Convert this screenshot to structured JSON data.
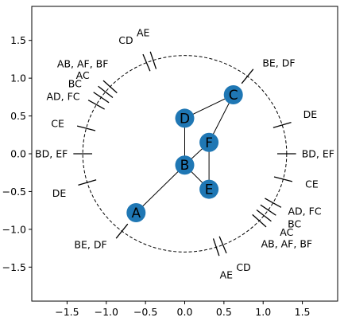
{
  "chart_data": {
    "type": "network",
    "xlim": [
      -1.95,
      1.95
    ],
    "ylim": [
      -1.95,
      1.95
    ],
    "xticks": [
      -1.5,
      -1.0,
      -0.5,
      0.0,
      0.5,
      1.0,
      1.5
    ],
    "yticks": [
      -1.5,
      -1.0,
      -0.5,
      0.0,
      0.5,
      1.0,
      1.5
    ],
    "xtick_labels": [
      "−1.5",
      "−1.0",
      "−0.5",
      "0.0",
      "0.5",
      "1.0",
      "1.5"
    ],
    "ytick_labels": [
      "−1.5",
      "−1.0",
      "−0.5",
      "0.0",
      "0.5",
      "1.0",
      "1.5"
    ],
    "circle": {
      "radius": 1.3,
      "style": "dashed"
    },
    "node_color": "#1f77b4",
    "nodes": [
      {
        "id": "A",
        "x": -0.62,
        "y": -0.78
      },
      {
        "id": "B",
        "x": 0.0,
        "y": -0.15
      },
      {
        "id": "C",
        "x": 0.62,
        "y": 0.78
      },
      {
        "id": "D",
        "x": 0.0,
        "y": 0.47
      },
      {
        "id": "E",
        "x": 0.31,
        "y": -0.47
      },
      {
        "id": "F",
        "x": 0.31,
        "y": 0.15
      }
    ],
    "edges": [
      [
        "A",
        "B"
      ],
      [
        "B",
        "D"
      ],
      [
        "B",
        "F"
      ],
      [
        "B",
        "E"
      ],
      [
        "F",
        "E"
      ],
      [
        "F",
        "C"
      ],
      [
        "D",
        "C"
      ]
    ],
    "annotations": [
      {
        "text": "AE",
        "x": -0.53,
        "y": 1.6
      },
      {
        "text": "CD",
        "x": -0.75,
        "y": 1.5
      },
      {
        "text": "AB, AF, BF",
        "x": -1.3,
        "y": 1.19
      },
      {
        "text": "AC",
        "x": -1.3,
        "y": 1.04
      },
      {
        "text": "BC",
        "x": -1.4,
        "y": 0.93
      },
      {
        "text": "AD, FC",
        "x": -1.55,
        "y": 0.76
      },
      {
        "text": "CE",
        "x": -1.62,
        "y": 0.4
      },
      {
        "text": "BD, EF",
        "x": -1.7,
        "y": 0.0
      },
      {
        "text": "DE",
        "x": -1.6,
        "y": -0.52
      },
      {
        "text": "BE, DF",
        "x": -1.2,
        "y": -1.2
      },
      {
        "text": "BE, DF",
        "x": 1.2,
        "y": 1.2
      },
      {
        "text": "DE",
        "x": 1.6,
        "y": 0.52
      },
      {
        "text": "BD, EF",
        "x": 1.7,
        "y": 0.0
      },
      {
        "text": "CE",
        "x": 1.62,
        "y": -0.4
      },
      {
        "text": "AD, FC",
        "x": 1.53,
        "y": -0.76
      },
      {
        "text": "BC",
        "x": 1.4,
        "y": -0.93
      },
      {
        "text": "AC",
        "x": 1.3,
        "y": -1.04
      },
      {
        "text": "AB, AF, BF",
        "x": 1.3,
        "y": -1.19
      },
      {
        "text": "CD",
        "x": 0.75,
        "y": -1.5
      },
      {
        "text": "AE",
        "x": 0.53,
        "y": -1.6
      }
    ],
    "markers": [
      {
        "angle": 112
      },
      {
        "angle": 108
      },
      {
        "angle": 137
      },
      {
        "angle": 141
      },
      {
        "angle": 145
      },
      {
        "angle": 150
      },
      {
        "angle": 165
      },
      {
        "angle": 180
      },
      {
        "angle": 197
      },
      {
        "angle": 232
      },
      {
        "angle": 52
      },
      {
        "angle": 17
      },
      {
        "angle": 0
      },
      {
        "angle": -15
      },
      {
        "angle": -30
      },
      {
        "angle": -35
      },
      {
        "angle": -39
      },
      {
        "angle": -43
      },
      {
        "angle": -68
      },
      {
        "angle": -72
      }
    ]
  }
}
